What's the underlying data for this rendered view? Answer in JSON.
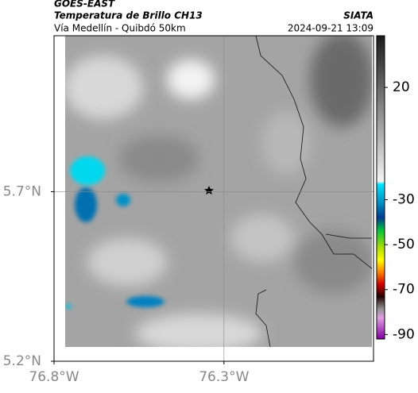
{
  "header": {
    "title": "GOES-EAST",
    "subtitle": "Temperatura de Brillo CH13",
    "source": "SIATA",
    "location": "Vía Medellín - Quibdó 50km",
    "timestamp": "2024-09-21 13:09"
  },
  "map": {
    "xlim": [
      -76.8,
      -75.86
    ],
    "ylim": [
      5.2,
      6.16
    ],
    "xticks": [
      {
        "value": -76.8,
        "label": "76.8°W"
      },
      {
        "value": -76.3,
        "label": "76.3°W"
      }
    ],
    "yticks": [
      {
        "value": 5.2,
        "label": "5.2°N"
      },
      {
        "value": 5.7,
        "label": "5.7°N"
      }
    ],
    "grid": true
  },
  "colorbar": {
    "clim": [
      43,
      -92
    ],
    "ticks": [
      20,
      -30,
      -50,
      -70,
      -90
    ]
  }
}
